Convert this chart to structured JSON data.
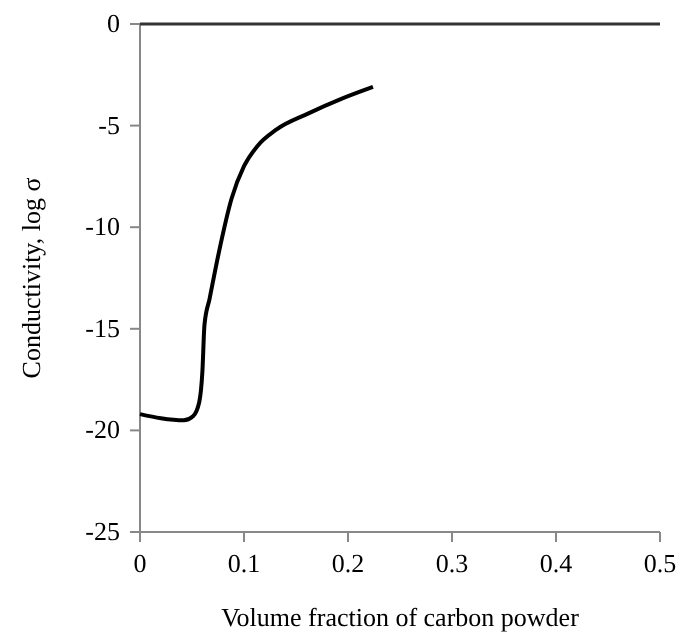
{
  "chart_data": {
    "type": "line",
    "xlabel": "Volume fraction of carbon powder",
    "ylabel": "Conductivity, log σ",
    "x": [
      0,
      0.02,
      0.042,
      0.051,
      0.057,
      0.06,
      0.062,
      0.067,
      0.076,
      0.088,
      0.1,
      0.113,
      0.131,
      0.162,
      0.193,
      0.224
    ],
    "series": [
      {
        "color": "#000000",
        "values": [
          -19.2,
          -19.4,
          -19.5,
          -19.3,
          -18.6,
          -17.1,
          -14.8,
          -13.5,
          -11.2,
          -8.6,
          -7.0,
          -6.0,
          -5.2,
          -4.4,
          -3.7,
          -3.1
        ]
      }
    ],
    "xlim": [
      0,
      0.5
    ],
    "xticks": [
      0,
      0.1,
      0.2,
      0.3,
      0.4,
      0.5
    ],
    "ylim": [
      -25,
      0
    ],
    "yticks": [
      -25,
      -20,
      -15,
      -10,
      -5,
      0
    ],
    "grid": false,
    "marker": "none",
    "line_style": "solid"
  }
}
